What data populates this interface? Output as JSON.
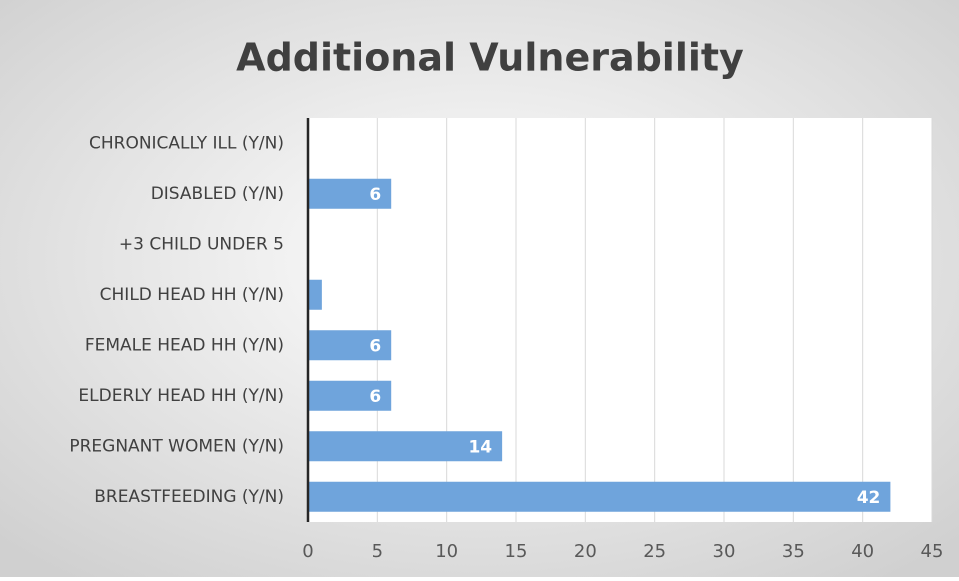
{
  "chart_data": {
    "type": "bar",
    "orientation": "horizontal",
    "title": "Additional Vulnerability",
    "categories": [
      "CHRONICALLY ILL (Y/N)",
      "DISABLED (Y/N)",
      "+3 CHILD UNDER 5",
      "CHILD HEAD HH (Y/N)",
      "FEMALE HEAD HH (Y/N)",
      "ELDERLY HEAD HH (Y/N)",
      "PREGNANT WOMEN (Y/N)",
      "BREASTFEEDING (Y/N)"
    ],
    "values": [
      0,
      6,
      0,
      1,
      6,
      6,
      14,
      42
    ],
    "color": "#6fa4dc",
    "xlim": [
      0,
      45
    ],
    "xticks": [
      0,
      5,
      10,
      15,
      20,
      25,
      30,
      35,
      40,
      45
    ],
    "grid": true
  }
}
